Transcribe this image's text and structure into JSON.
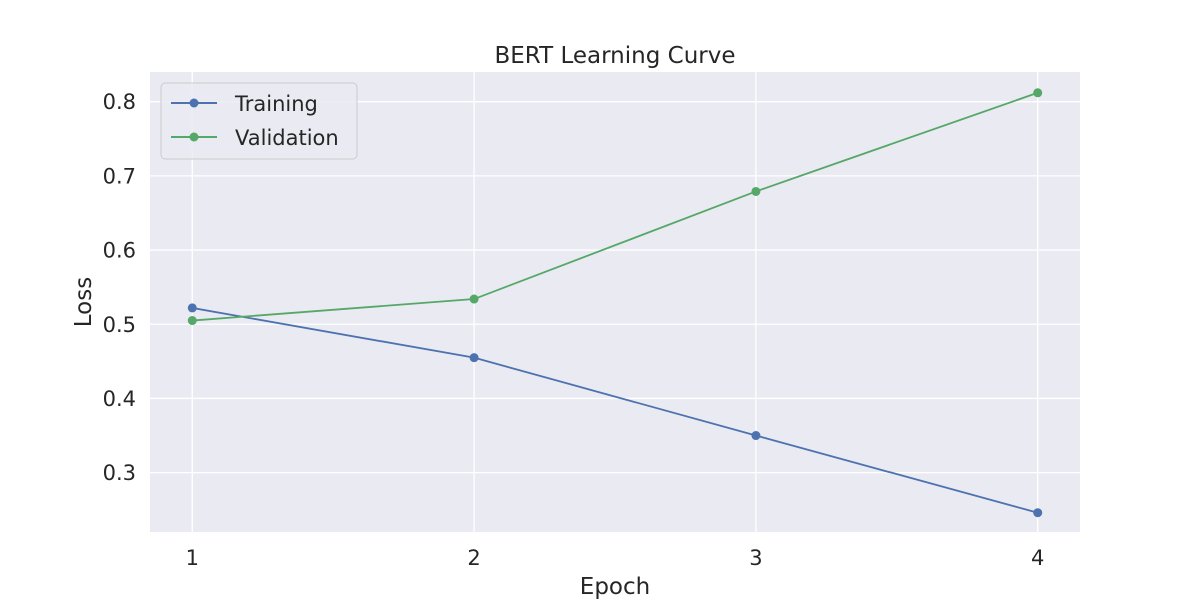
{
  "chart_data": {
    "type": "line",
    "title": "BERT Learning Curve",
    "xlabel": "Epoch",
    "ylabel": "Loss",
    "x": [
      1,
      2,
      3,
      4
    ],
    "xticks": [
      "1",
      "2",
      "3",
      "4"
    ],
    "yticks": [
      "0.3",
      "0.4",
      "0.5",
      "0.6",
      "0.7",
      "0.8"
    ],
    "xlim": [
      0.85,
      4.15
    ],
    "ylim": [
      0.22,
      0.84
    ],
    "grid": true,
    "legend_position": "top-left",
    "series": [
      {
        "name": "Training",
        "values": [
          0.522,
          0.455,
          0.35,
          0.246
        ],
        "color": "#4c72b0"
      },
      {
        "name": "Validation",
        "values": [
          0.505,
          0.534,
          0.679,
          0.812
        ],
        "color": "#55a868"
      }
    ]
  }
}
